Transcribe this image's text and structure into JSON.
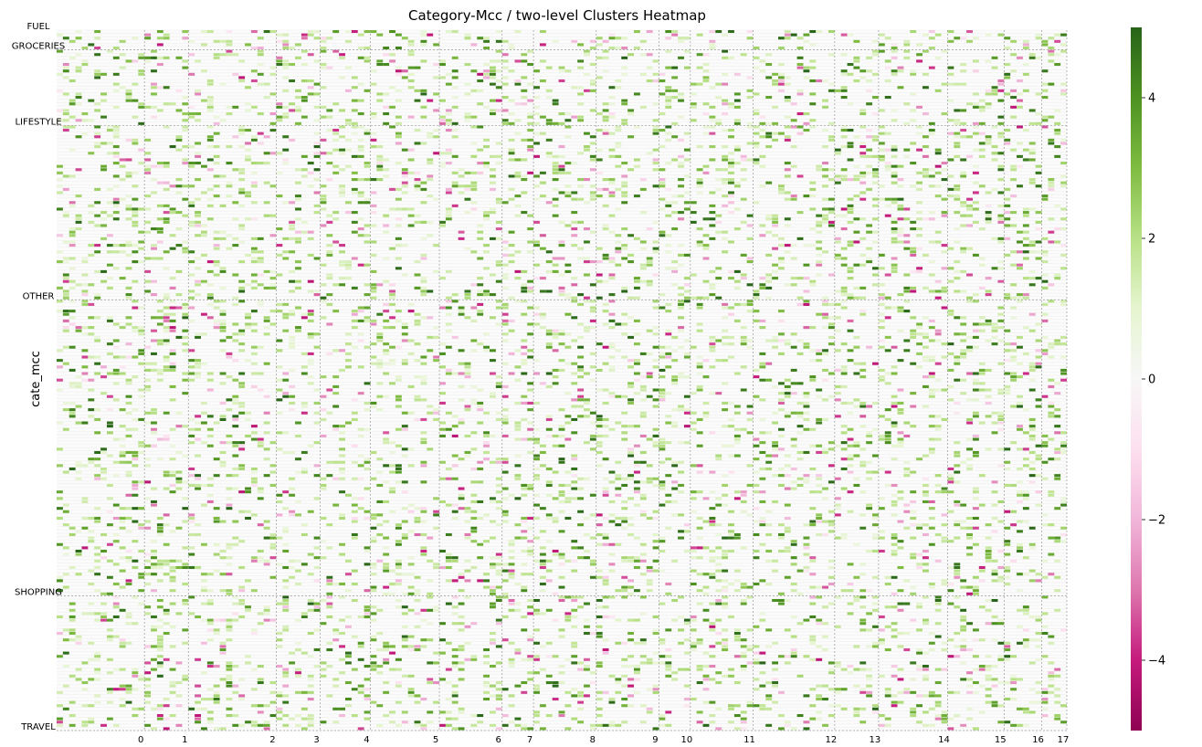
{
  "chart_data": {
    "type": "heatmap",
    "title": "Category-Mcc / two-level Clusters Heatmap",
    "xlabel": "",
    "ylabel": "cate_mcc",
    "row_groups": [
      {
        "name": "FUEL",
        "rows": 6
      },
      {
        "name": "GROCERIES",
        "rows": 23
      },
      {
        "name": "LIFESTYLE",
        "rows": 53
      },
      {
        "name": "OTHER",
        "rows": 90
      },
      {
        "name": "SHOPPING",
        "rows": 41
      },
      {
        "name": "TRAVEL",
        "rows": 0
      }
    ],
    "column_clusters": [
      {
        "label": "0",
        "cols": 14
      },
      {
        "label": "1",
        "cols": 7
      },
      {
        "label": "2",
        "cols": 14
      },
      {
        "label": "3",
        "cols": 7
      },
      {
        "label": "4",
        "cols": 8
      },
      {
        "label": "5",
        "cols": 11
      },
      {
        "label": "6",
        "cols": 10
      },
      {
        "label": "7",
        "cols": 5
      },
      {
        "label": "8",
        "cols": 10
      },
      {
        "label": "9",
        "cols": 10
      },
      {
        "label": "10",
        "cols": 5
      },
      {
        "label": "11",
        "cols": 10
      },
      {
        "label": "12",
        "cols": 13
      },
      {
        "label": "13",
        "cols": 7
      },
      {
        "label": "14",
        "cols": 11
      },
      {
        "label": "15",
        "cols": 9
      },
      {
        "label": "16",
        "cols": 6
      },
      {
        "label": "17",
        "cols": 4
      }
    ],
    "colorbar": {
      "colormap": "PiYG",
      "vmin": -5,
      "vmax": 5,
      "ticks": [
        4,
        2,
        0,
        -2,
        -4
      ],
      "tick_labels": [
        "4",
        "2",
        "0",
        "−2",
        "−4"
      ]
    },
    "value_distribution": {
      "zero_fraction": 0.8,
      "light_positive_fraction": 0.12,
      "strong_positive_fraction": 0.05,
      "negative_fraction": 0.03,
      "range": [
        -5,
        5
      ]
    },
    "grid": false,
    "colors": {
      "strong_positive": "#276419",
      "mid_positive": "#7fbc41",
      "light_positive": "#e6f5d0",
      "neutral": "#f7f7f7",
      "light_negative": "#fde0ef",
      "strong_negative": "#8e0152",
      "separator": "#999999"
    }
  }
}
